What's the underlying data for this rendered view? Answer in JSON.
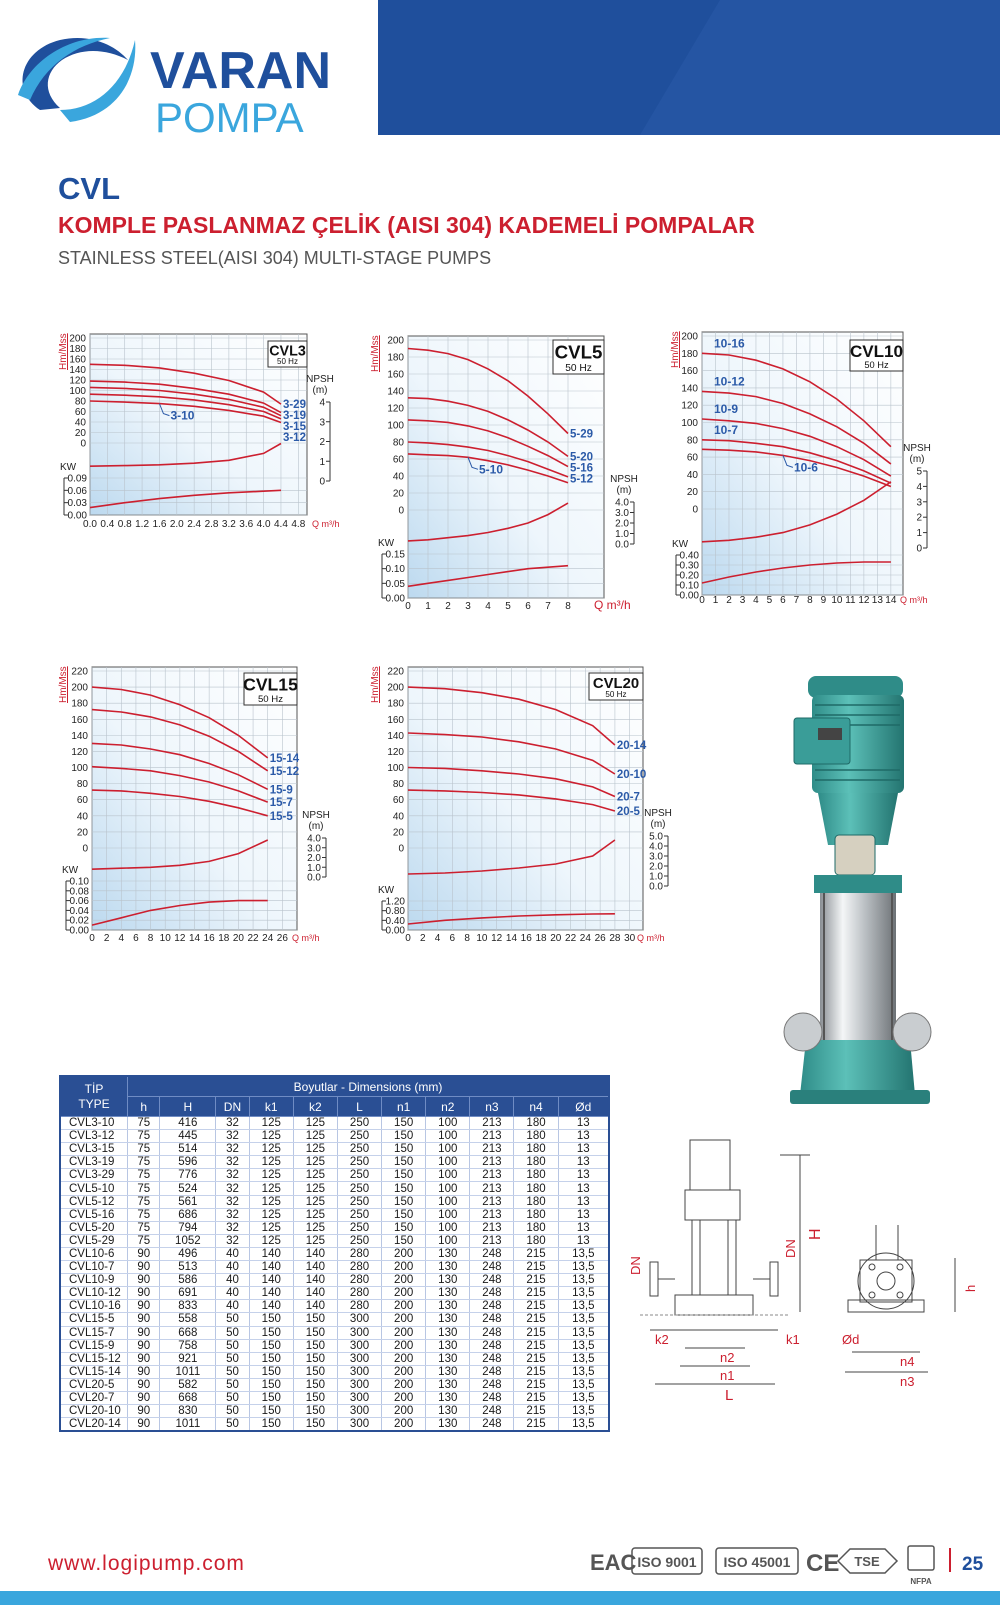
{
  "header": {
    "brand": "VARAN",
    "brand_sub": "POMPA"
  },
  "title": {
    "series": "CVL",
    "tr": "KOMPLE PASLANMAZ ÇELİK (AISI 304) KADEMELİ POMPALAR",
    "en": "STAINLESS STEEL(AISI 304) MULTI-STAGE PUMPS"
  },
  "chart_data": [
    {
      "type": "line",
      "title": "CVL3",
      "subtitle": "50 Hz",
      "y_label": "Hm/Mss",
      "x_label": "Q m³/h",
      "color": "#cc1f2f",
      "label_color": "#2b5aa8",
      "grid": true,
      "x": [
        0,
        0.8,
        1.6,
        2.4,
        3.2,
        4.0,
        4.4
      ],
      "xlim": [
        0,
        5
      ],
      "xticks": [
        {
          "value": 0,
          "label": "0.0"
        },
        0.4,
        0.8,
        1.2,
        1.6,
        {
          "value": 2,
          "label": "2.0"
        },
        2.4,
        2.8,
        3.2,
        3.6,
        {
          "value": 4,
          "label": "4.0"
        },
        4.4,
        4.8
      ],
      "ylim": [
        0,
        200
      ],
      "yticks": [
        0,
        20,
        40,
        60,
        80,
        100,
        120,
        140,
        160,
        180,
        200
      ],
      "series": [
        {
          "name": "3-29",
          "values": [
            150,
            148,
            143,
            133,
            119,
            97,
            74
          ]
        },
        {
          "name": "3-19",
          "values": [
            118,
            116,
            112,
            104,
            93,
            76,
            58
          ]
        },
        {
          "name": "3-15",
          "values": [
            106,
            104,
            100,
            93,
            83,
            68,
            52
          ]
        },
        {
          "name": "3-12",
          "values": [
            93,
            91,
            88,
            82,
            73,
            60,
            46
          ]
        },
        {
          "name": "3-10",
          "values": [
            80,
            78,
            75,
            70,
            62,
            51,
            39
          ]
        }
      ],
      "npsh": {
        "label": "NPSH",
        "unit": "(m)",
        "ylim": [
          0,
          4
        ],
        "yticks": [
          0,
          1,
          2,
          3,
          4
        ],
        "values": [
          0.75,
          0.78,
          0.82,
          0.9,
          1.05,
          1.4,
          1.9
        ]
      },
      "power": {
        "label": "KW",
        "ylim": [
          0,
          0.09
        ],
        "yticks": [
          {
            "value": 0,
            "label": "0.00"
          },
          0.03,
          0.06,
          0.09
        ],
        "values": [
          0.018,
          0.03,
          0.04,
          0.048,
          0.054,
          0.058,
          0.06
        ]
      }
    },
    {
      "type": "line",
      "title": "CVL5",
      "subtitle": "50 Hz",
      "y_label": "Hm/Mss",
      "x_label": "Q m³/h",
      "color": "#cc1f2f",
      "label_color": "#2b5aa8",
      "grid": true,
      "x": [
        0,
        1,
        2,
        3,
        4,
        5,
        6,
        7,
        8
      ],
      "xlim": [
        0,
        9.8
      ],
      "xticks": [
        0,
        1,
        2,
        3,
        4,
        5,
        6,
        7,
        8
      ],
      "ylim": [
        0,
        200
      ],
      "yticks": [
        0,
        20,
        40,
        60,
        80,
        100,
        120,
        140,
        160,
        180,
        200
      ],
      "series": [
        {
          "name": "5-29",
          "values": [
            190,
            188,
            184,
            177,
            166,
            152,
            134,
            113,
            90
          ]
        },
        {
          "name": "5-20",
          "values": [
            132,
            131,
            128,
            123,
            116,
            106,
            94,
            80,
            63
          ]
        },
        {
          "name": "5-16",
          "values": [
            106,
            105,
            103,
            99,
            93,
            85,
            75,
            64,
            51
          ]
        },
        {
          "name": "5-12",
          "values": [
            80,
            79,
            77,
            74,
            70,
            64,
            57,
            48,
            39
          ]
        },
        {
          "name": "5-10",
          "values": [
            66,
            65,
            64,
            62,
            58,
            53,
            47,
            40,
            32
          ]
        }
      ],
      "npsh": {
        "label": "NPSH",
        "unit": "(m)",
        "ylim": [
          0,
          4
        ],
        "yticks": [
          {
            "value": 0,
            "label": "0.0"
          },
          {
            "value": 1,
            "label": "1.0"
          },
          {
            "value": 2,
            "label": "2.0"
          },
          {
            "value": 3,
            "label": "3.0"
          },
          {
            "value": 4,
            "label": "4.0"
          }
        ],
        "values": [
          0.3,
          0.4,
          0.6,
          0.8,
          1.1,
          1.5,
          2.0,
          2.8,
          3.9
        ]
      },
      "power": {
        "label": "KW",
        "ylim": [
          0,
          0.15
        ],
        "yticks": [
          {
            "value": 0,
            "label": "0.00"
          },
          0.05,
          {
            "value": 0.1,
            "label": "0.10"
          },
          0.15
        ],
        "values": [
          0.04,
          0.05,
          0.06,
          0.07,
          0.08,
          0.09,
          0.1,
          0.105,
          0.11
        ]
      }
    },
    {
      "type": "line",
      "title": "CVL10",
      "subtitle": "50 Hz",
      "y_label": "Hm/Mss",
      "x_label": "Q m³/h",
      "color": "#cc1f2f",
      "label_color": "#2b5aa8",
      "grid": true,
      "x": [
        0,
        2,
        4,
        6,
        8,
        10,
        12,
        14
      ],
      "xlim": [
        0,
        14.9
      ],
      "xticks": [
        0,
        1,
        2,
        3,
        4,
        5,
        6,
        7,
        8,
        9,
        10,
        11,
        12,
        13,
        14
      ],
      "ylim": [
        0,
        200
      ],
      "yticks": [
        0,
        20,
        40,
        60,
        80,
        100,
        120,
        140,
        160,
        180,
        200
      ],
      "series": [
        {
          "name": "10-16",
          "values": [
            180,
            178,
            172,
            162,
            147,
            127,
            102,
            72
          ]
        },
        {
          "name": "10-12",
          "values": [
            136,
            134,
            130,
            122,
            110,
            95,
            76,
            52
          ]
        },
        {
          "name": "10-9",
          "values": [
            104,
            102,
            99,
            93,
            84,
            72,
            57,
            38
          ]
        },
        {
          "name": "10-7",
          "values": [
            80,
            79,
            76,
            72,
            65,
            56,
            44,
            30
          ]
        },
        {
          "name": "10-6",
          "values": [
            69,
            68,
            66,
            62,
            56,
            48,
            38,
            26
          ]
        }
      ],
      "npsh": {
        "label": "NPSH",
        "unit": "(m)",
        "ylim": [
          0,
          5
        ],
        "yticks": [
          0,
          1,
          2,
          3,
          4,
          5
        ],
        "values": [
          0.4,
          0.5,
          0.7,
          1.0,
          1.5,
          2.2,
          3.1,
          4.3
        ]
      },
      "power": {
        "label": "KW",
        "ylim": [
          0,
          0.4
        ],
        "yticks": [
          {
            "value": 0,
            "label": "0.00"
          },
          {
            "value": 0.1,
            "label": "0.10"
          },
          {
            "value": 0.2,
            "label": "0.20"
          },
          {
            "value": 0.3,
            "label": "0.30"
          },
          {
            "value": 0.4,
            "label": "0.40"
          }
        ],
        "values": [
          0.12,
          0.18,
          0.23,
          0.27,
          0.3,
          0.32,
          0.33,
          0.33
        ]
      }
    },
    {
      "type": "line",
      "title": "CVL15",
      "subtitle": "50 Hz",
      "y_label": "Hm/Mss",
      "x_label": "Q m³/h",
      "color": "#cc1f2f",
      "label_color": "#2b5aa8",
      "grid": true,
      "x": [
        0,
        4,
        8,
        12,
        16,
        20,
        24
      ],
      "xlim": [
        0,
        28
      ],
      "xticks": [
        0,
        2,
        4,
        6,
        8,
        10,
        12,
        14,
        16,
        18,
        20,
        22,
        24,
        26
      ],
      "ylim": [
        0,
        220
      ],
      "yticks": [
        0,
        20,
        40,
        60,
        80,
        100,
        120,
        140,
        160,
        180,
        200,
        220
      ],
      "series": [
        {
          "name": "15-14",
          "values": [
            200,
            197,
            190,
            178,
            162,
            140,
            112
          ]
        },
        {
          "name": "15-12",
          "values": [
            172,
            169,
            163,
            153,
            139,
            120,
            96
          ]
        },
        {
          "name": "15-9",
          "values": [
            130,
            128,
            123,
            116,
            105,
            91,
            73
          ]
        },
        {
          "name": "15-7",
          "values": [
            101,
            99,
            96,
            90,
            82,
            71,
            57
          ]
        },
        {
          "name": "15-5",
          "values": [
            72,
            71,
            68,
            64,
            58,
            50,
            40
          ]
        }
      ],
      "npsh": {
        "label": "NPSH",
        "unit": "(m)",
        "ylim": [
          0,
          4
        ],
        "yticks": [
          {
            "value": 0,
            "label": "0.0"
          },
          {
            "value": 1,
            "label": "1.0"
          },
          {
            "value": 2,
            "label": "2.0"
          },
          {
            "value": 3,
            "label": "3.0"
          },
          {
            "value": 4,
            "label": "4.0"
          }
        ],
        "values": [
          0.8,
          0.9,
          1.0,
          1.2,
          1.6,
          2.4,
          3.8
        ]
      },
      "power": {
        "label": "KW",
        "ylim": [
          0,
          0.1
        ],
        "yticks": [
          {
            "value": 0,
            "label": "0.00"
          },
          0.02,
          0.04,
          0.06,
          0.08,
          {
            "value": 0.1,
            "label": "0.10"
          }
        ],
        "values": [
          0.01,
          0.025,
          0.04,
          0.05,
          0.057,
          0.06,
          0.06
        ]
      }
    },
    {
      "type": "line",
      "title": "CVL20",
      "subtitle": "50 Hz",
      "y_label": "Hm/Mss",
      "x_label": "Q m³/h",
      "color": "#cc1f2f",
      "label_color": "#2b5aa8",
      "grid": true,
      "x": [
        0,
        5,
        10,
        15,
        20,
        25,
        28
      ],
      "xlim": [
        0,
        31.8
      ],
      "xticks": [
        0,
        2,
        4,
        6,
        8,
        10,
        12,
        14,
        16,
        18,
        20,
        22,
        24,
        26,
        28,
        30
      ],
      "ylim": [
        0,
        220
      ],
      "yticks": [
        0,
        20,
        40,
        60,
        80,
        100,
        120,
        140,
        160,
        180,
        200,
        220
      ],
      "series": [
        {
          "name": "20-14",
          "values": [
            200,
            198,
            193,
            185,
            172,
            152,
            128
          ]
        },
        {
          "name": "20-10",
          "values": [
            143,
            141,
            138,
            132,
            123,
            109,
            92
          ]
        },
        {
          "name": "20-7",
          "values": [
            100,
            99,
            96,
            92,
            86,
            76,
            64
          ]
        },
        {
          "name": "20-5",
          "values": [
            72,
            71,
            69,
            66,
            61,
            54,
            46
          ]
        }
      ],
      "npsh": {
        "label": "NPSH",
        "unit": "(m)",
        "ylim": [
          0,
          5
        ],
        "yticks": [
          {
            "value": 0,
            "label": "0.0"
          },
          {
            "value": 1,
            "label": "1.0"
          },
          {
            "value": 2,
            "label": "2.0"
          },
          {
            "value": 3,
            "label": "3.0"
          },
          {
            "value": 4,
            "label": "4.0"
          },
          {
            "value": 5,
            "label": "5.0"
          }
        ],
        "values": [
          1.2,
          1.3,
          1.5,
          1.8,
          2.2,
          3.0,
          4.6
        ]
      },
      "power": {
        "label": "KW",
        "ylim": [
          0,
          1.2
        ],
        "yticks": [
          {
            "value": 0,
            "label": "0.00"
          },
          {
            "value": 0.4,
            "label": "0.40"
          },
          {
            "value": 0.8,
            "label": "0.80"
          },
          {
            "value": 1.2,
            "label": "1.20"
          }
        ],
        "values": [
          0.25,
          0.4,
          0.5,
          0.58,
          0.63,
          0.66,
          0.67
        ]
      }
    }
  ],
  "table": {
    "type_header": [
      "TİP",
      "TYPE"
    ],
    "group_header": "Boyutlar -  Dimensions (mm)",
    "columns": [
      "h",
      "H",
      "DN",
      "k1",
      "k2",
      "L",
      "n1",
      "n2",
      "n3",
      "n4",
      "Ød"
    ],
    "rows": [
      [
        "CVL3-10",
        75,
        416,
        32,
        125,
        125,
        250,
        150,
        100,
        213,
        180,
        13
      ],
      [
        "CVL3-12",
        75,
        445,
        32,
        125,
        125,
        250,
        150,
        100,
        213,
        180,
        13
      ],
      [
        "CVL3-15",
        75,
        514,
        32,
        125,
        125,
        250,
        150,
        100,
        213,
        180,
        13
      ],
      [
        "CVL3-19",
        75,
        596,
        32,
        125,
        125,
        250,
        150,
        100,
        213,
        180,
        13
      ],
      [
        "CVL3-29",
        75,
        776,
        32,
        125,
        125,
        250,
        150,
        100,
        213,
        180,
        13
      ],
      [
        "CVL5-10",
        75,
        524,
        32,
        125,
        125,
        250,
        150,
        100,
        213,
        180,
        13
      ],
      [
        "CVL5-12",
        75,
        561,
        32,
        125,
        125,
        250,
        150,
        100,
        213,
        180,
        13
      ],
      [
        "CVL5-16",
        75,
        686,
        32,
        125,
        125,
        250,
        150,
        100,
        213,
        180,
        13
      ],
      [
        "CVL5-20",
        75,
        794,
        32,
        125,
        125,
        250,
        150,
        100,
        213,
        180,
        13
      ],
      [
        "CVL5-29",
        75,
        1052,
        32,
        125,
        125,
        250,
        150,
        100,
        213,
        180,
        13
      ],
      [
        "CVL10-6",
        90,
        496,
        40,
        140,
        140,
        280,
        200,
        130,
        248,
        215,
        "13,5"
      ],
      [
        "CVL10-7",
        90,
        513,
        40,
        140,
        140,
        280,
        200,
        130,
        248,
        215,
        "13,5"
      ],
      [
        "CVL10-9",
        90,
        586,
        40,
        140,
        140,
        280,
        200,
        130,
        248,
        215,
        "13,5"
      ],
      [
        "CVL10-12",
        90,
        691,
        40,
        140,
        140,
        280,
        200,
        130,
        248,
        215,
        "13,5"
      ],
      [
        "CVL10-16",
        90,
        833,
        40,
        140,
        140,
        280,
        200,
        130,
        248,
        215,
        "13,5"
      ],
      [
        "CVL15-5",
        90,
        558,
        50,
        150,
        150,
        300,
        200,
        130,
        248,
        215,
        "13,5"
      ],
      [
        "CVL15-7",
        90,
        668,
        50,
        150,
        150,
        300,
        200,
        130,
        248,
        215,
        "13,5"
      ],
      [
        "CVL15-9",
        90,
        758,
        50,
        150,
        150,
        300,
        200,
        130,
        248,
        215,
        "13,5"
      ],
      [
        "CVL15-12",
        90,
        921,
        50,
        150,
        150,
        300,
        200,
        130,
        248,
        215,
        "13,5"
      ],
      [
        "CVL15-14",
        90,
        1011,
        50,
        150,
        150,
        300,
        200,
        130,
        248,
        215,
        "13,5"
      ],
      [
        "CVL20-5",
        90,
        582,
        50,
        150,
        150,
        300,
        200,
        130,
        248,
        215,
        "13,5"
      ],
      [
        "CVL20-7",
        90,
        668,
        50,
        150,
        150,
        300,
        200,
        130,
        248,
        215,
        "13,5"
      ],
      [
        "CVL20-10",
        90,
        830,
        50,
        150,
        150,
        300,
        200,
        130,
        248,
        215,
        "13,5"
      ],
      [
        "CVL20-14",
        90,
        1011,
        50,
        150,
        150,
        300,
        200,
        130,
        248,
        215,
        "13,5"
      ]
    ]
  },
  "drawing": {
    "labels": [
      "DN",
      "H",
      "DN",
      "k2",
      "k1",
      "n2",
      "n1",
      "L",
      "h",
      "Ød",
      "n4",
      "n3"
    ]
  },
  "footer": {
    "url": "www.logipump.com",
    "certs": [
      "EAC",
      "ISO 9001",
      "ISO 45001",
      "CE",
      "TSE",
      "NFPA"
    ],
    "page": 25
  }
}
